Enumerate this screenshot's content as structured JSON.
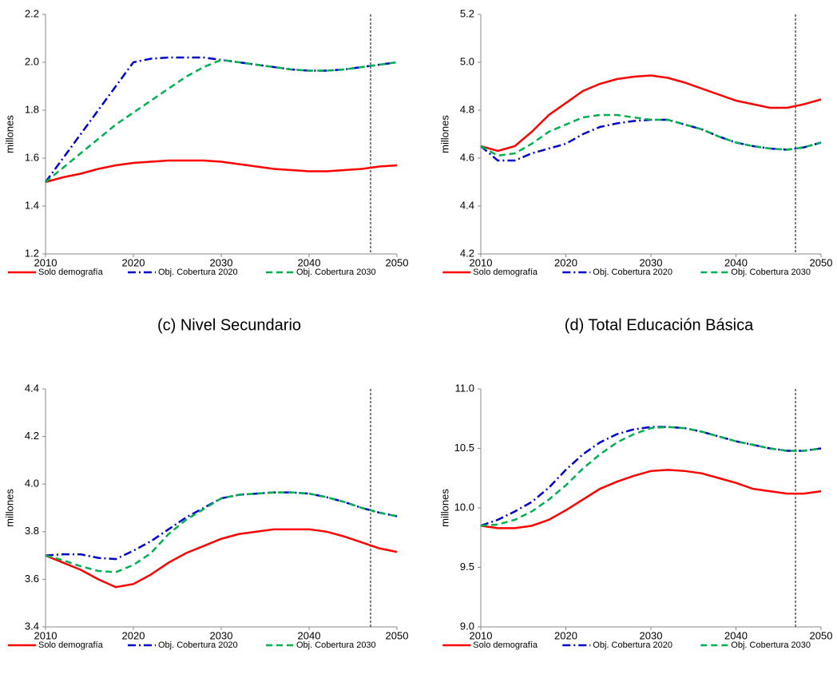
{
  "chart_data": [
    {
      "type": "line",
      "y_label": "millones",
      "x": [
        2010,
        2012,
        2014,
        2016,
        2018,
        2020,
        2022,
        2024,
        2026,
        2028,
        2030,
        2032,
        2034,
        2036,
        2038,
        2040,
        2042,
        2044,
        2046,
        2048,
        2050
      ],
      "xlim": [
        2010,
        2050
      ],
      "xticks": [
        2010,
        2020,
        2030,
        2040,
        2050
      ],
      "ylim": [
        1.2,
        2.2
      ],
      "yticks": [
        1.2,
        1.4,
        1.6,
        1.8,
        {
          "value": 2,
          "label": "2.0"
        },
        2.2
      ],
      "vline_x": 2047,
      "series": [
        {
          "name": "Solo demografía",
          "color": "#ff0000",
          "style": "solid",
          "values": [
            1.5,
            1.52,
            1.535,
            1.555,
            1.57,
            1.58,
            1.585,
            1.59,
            1.59,
            1.59,
            1.585,
            1.575,
            1.565,
            1.555,
            1.55,
            1.545,
            1.545,
            1.55,
            1.555,
            1.565,
            1.57
          ]
        },
        {
          "name": "Obj. Cobertura 2020",
          "color": "#0000cc",
          "style": "dashdot",
          "values": [
            1.5,
            1.6,
            1.7,
            1.8,
            1.9,
            2.0,
            2.015,
            2.02,
            2.02,
            2.02,
            2.01,
            2.0,
            1.99,
            1.98,
            1.97,
            1.965,
            1.965,
            1.97,
            1.98,
            1.99,
            2.0
          ]
        },
        {
          "name": "Obj. Cobertura 2030",
          "color": "#00b050",
          "style": "dashed",
          "values": [
            1.5,
            1.56,
            1.62,
            1.68,
            1.74,
            1.79,
            1.84,
            1.89,
            1.94,
            1.98,
            2.01,
            2.0,
            1.99,
            1.98,
            1.97,
            1.965,
            1.965,
            1.97,
            1.98,
            1.99,
            2.0
          ]
        }
      ]
    },
    {
      "type": "line",
      "y_label": "millones",
      "x": [
        2010,
        2012,
        2014,
        2016,
        2018,
        2020,
        2022,
        2024,
        2026,
        2028,
        2030,
        2032,
        2034,
        2036,
        2038,
        2040,
        2042,
        2044,
        2046,
        2048,
        2050
      ],
      "xlim": [
        2010,
        2050
      ],
      "xticks": [
        2010,
        2020,
        2030,
        2040,
        2050
      ],
      "ylim": [
        4.2,
        5.2
      ],
      "yticks": [
        4.2,
        4.4,
        4.6,
        4.8,
        {
          "value": 5,
          "label": "5.0"
        },
        5.2
      ],
      "vline_x": 2047,
      "series": [
        {
          "name": "Solo demografía",
          "color": "#ff0000",
          "style": "solid",
          "values": [
            4.65,
            4.63,
            4.65,
            4.71,
            4.78,
            4.83,
            4.88,
            4.91,
            4.93,
            4.94,
            4.945,
            4.935,
            4.915,
            4.89,
            4.865,
            4.84,
            4.825,
            4.81,
            4.81,
            4.825,
            4.845
          ]
        },
        {
          "name": "Obj. Cobertura 2020",
          "color": "#0000cc",
          "style": "dashdot",
          "values": [
            4.65,
            4.59,
            4.59,
            4.62,
            4.64,
            4.66,
            4.7,
            4.73,
            4.745,
            4.755,
            4.76,
            4.76,
            4.74,
            4.72,
            4.69,
            4.665,
            4.65,
            4.64,
            4.635,
            4.645,
            4.665
          ]
        },
        {
          "name": "Obj. Cobertura 2030",
          "color": "#00b050",
          "style": "dashed",
          "values": [
            4.65,
            4.61,
            4.62,
            4.66,
            4.71,
            4.74,
            4.77,
            4.78,
            4.78,
            4.77,
            4.76,
            4.76,
            4.74,
            4.72,
            4.69,
            4.665,
            4.65,
            4.64,
            4.635,
            4.645,
            4.665
          ]
        }
      ]
    },
    {
      "type": "line",
      "title": "(c) Nivel Secundario",
      "y_label": "millones",
      "x": [
        2010,
        2012,
        2014,
        2016,
        2018,
        2020,
        2022,
        2024,
        2026,
        2028,
        2030,
        2032,
        2034,
        2036,
        2038,
        2040,
        2042,
        2044,
        2046,
        2048,
        2050
      ],
      "xlim": [
        2010,
        2050
      ],
      "xticks": [
        2010,
        2020,
        2030,
        2040,
        2050
      ],
      "ylim": [
        3.4,
        4.4
      ],
      "yticks": [
        3.4,
        3.6,
        3.8,
        {
          "value": 4,
          "label": "4.0"
        },
        4.2,
        4.4
      ],
      "vline_x": 2047,
      "series": [
        {
          "name": "Solo demografía",
          "color": "#ff0000",
          "style": "solid",
          "values": [
            3.7,
            3.67,
            3.64,
            3.6,
            3.567,
            3.58,
            3.62,
            3.67,
            3.71,
            3.74,
            3.77,
            3.79,
            3.8,
            3.81,
            3.81,
            3.81,
            3.8,
            3.78,
            3.755,
            3.73,
            3.715
          ]
        },
        {
          "name": "Obj. Cobertura 2020",
          "color": "#0000cc",
          "style": "dashdot",
          "values": [
            3.7,
            3.705,
            3.705,
            3.69,
            3.685,
            3.72,
            3.76,
            3.81,
            3.86,
            3.9,
            3.94,
            3.955,
            3.96,
            3.965,
            3.965,
            3.96,
            3.945,
            3.925,
            3.9,
            3.88,
            3.865
          ]
        },
        {
          "name": "Obj. Cobertura 2030",
          "color": "#00b050",
          "style": "dashed",
          "values": [
            3.7,
            3.68,
            3.655,
            3.635,
            3.63,
            3.66,
            3.71,
            3.79,
            3.85,
            3.895,
            3.94,
            3.955,
            3.96,
            3.965,
            3.965,
            3.96,
            3.945,
            3.925,
            3.9,
            3.88,
            3.865
          ]
        }
      ]
    },
    {
      "type": "line",
      "title": "(d) Total Educación Básica",
      "y_label": "millones",
      "x": [
        2010,
        2012,
        2014,
        2016,
        2018,
        2020,
        2022,
        2024,
        2026,
        2028,
        2030,
        2032,
        2034,
        2036,
        2038,
        2040,
        2042,
        2044,
        2046,
        2048,
        2050
      ],
      "xlim": [
        2010,
        2050
      ],
      "xticks": [
        2010,
        2020,
        2030,
        2040,
        2050
      ],
      "ylim": [
        9,
        11
      ],
      "yticks": [
        {
          "value": 9,
          "label": "9.0"
        },
        9.5,
        {
          "value": 10,
          "label": "10.0"
        },
        10.5,
        {
          "value": 11,
          "label": "11.0"
        }
      ],
      "vline_x": 2047,
      "series": [
        {
          "name": "Solo demografía",
          "color": "#ff0000",
          "style": "solid",
          "values": [
            9.85,
            9.83,
            9.83,
            9.85,
            9.9,
            9.98,
            10.07,
            10.16,
            10.22,
            10.27,
            10.31,
            10.32,
            10.31,
            10.29,
            10.25,
            10.21,
            10.16,
            10.14,
            10.12,
            10.12,
            10.14
          ]
        },
        {
          "name": "Obj. Cobertura 2020",
          "color": "#0000cc",
          "style": "dashdot",
          "values": [
            9.85,
            9.9,
            9.97,
            10.05,
            10.17,
            10.32,
            10.45,
            10.55,
            10.62,
            10.66,
            10.68,
            10.68,
            10.67,
            10.64,
            10.6,
            10.56,
            10.53,
            10.5,
            10.48,
            10.48,
            10.5
          ]
        },
        {
          "name": "Obj. Cobertura 2030",
          "color": "#00b050",
          "style": "dashed",
          "values": [
            9.85,
            9.86,
            9.9,
            9.97,
            10.07,
            10.19,
            10.33,
            10.45,
            10.55,
            10.62,
            10.67,
            10.68,
            10.67,
            10.64,
            10.6,
            10.56,
            10.53,
            10.5,
            10.48,
            10.48,
            10.5
          ]
        }
      ]
    }
  ]
}
